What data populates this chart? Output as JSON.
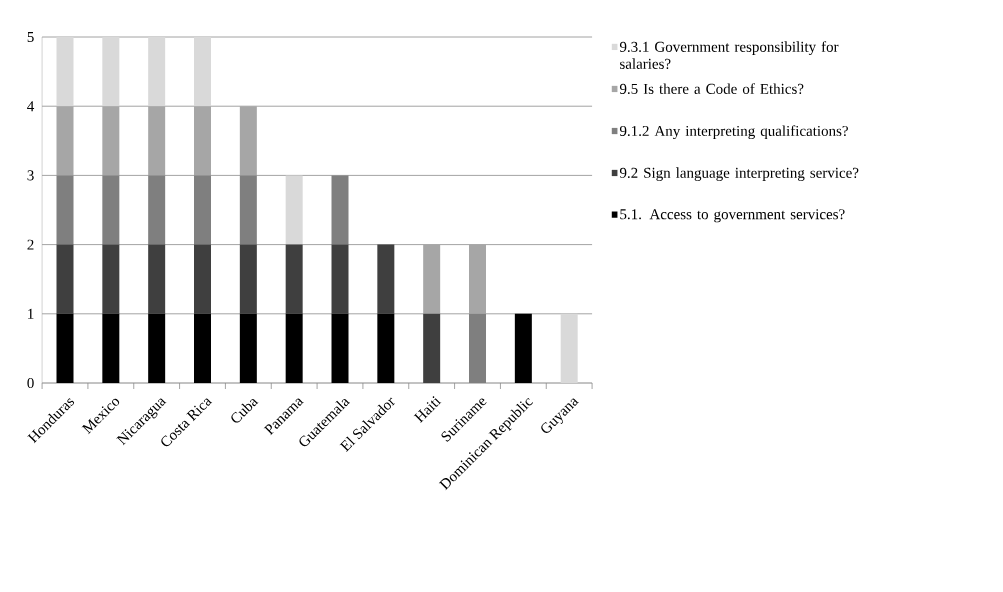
{
  "chart_data": {
    "type": "bar",
    "stacked": true,
    "categories": [
      "Honduras",
      "Mexico",
      "Nicaragua",
      "Costa Rica",
      "Cuba",
      "Panama",
      "Guatemala",
      "El Salvador",
      "Haiti",
      "Suriname",
      "Dominican Republic",
      "Guyana"
    ],
    "series": [
      {
        "name": "5.1. Access to government services?",
        "color": "#000000",
        "values": [
          1,
          1,
          1,
          1,
          1,
          1,
          1,
          1,
          0,
          0,
          1,
          0
        ]
      },
      {
        "name": "9.2 Sign language interpreting service?",
        "color": "#3f3f3f",
        "values": [
          1,
          1,
          1,
          1,
          1,
          1,
          1,
          1,
          1,
          0,
          0,
          0
        ]
      },
      {
        "name": "9.1.2 Any interpreting qualifications?",
        "color": "#7f7f7f",
        "values": [
          1,
          1,
          1,
          1,
          1,
          0,
          1,
          0,
          0,
          1,
          0,
          0
        ]
      },
      {
        "name": "9.5 Is there a Code of Ethics?",
        "color": "#a6a6a6",
        "values": [
          1,
          1,
          1,
          1,
          1,
          0,
          0,
          0,
          1,
          1,
          0,
          0
        ]
      },
      {
        "name": "9.3.1 Government responsibility for salaries?",
        "color": "#d9d9d9",
        "values": [
          1,
          1,
          1,
          1,
          0,
          1,
          0,
          0,
          0,
          0,
          0,
          1
        ]
      }
    ],
    "ylim": [
      0,
      5
    ],
    "yticks": [
      0,
      1,
      2,
      3,
      4,
      5
    ],
    "grid": "y",
    "legend": "right"
  }
}
